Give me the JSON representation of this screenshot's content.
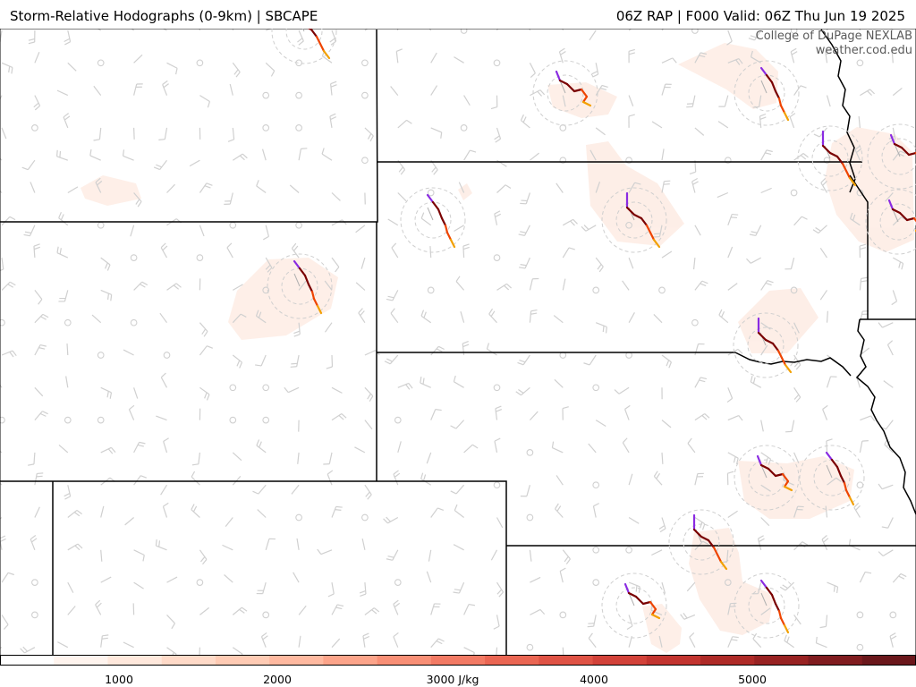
{
  "header": {
    "title_left": "Storm-Relative Hodographs (0-9km) | SBCAPE",
    "title_right": "06Z RAP | F000 Valid: 06Z Thu Jun 19 2025"
  },
  "credit": {
    "line1": "College of DuPage NEXLAB",
    "line2": "weather.cod.edu"
  },
  "colors": {
    "border": "#000000",
    "barb": "#cfcfcf",
    "cape_shade": "#fde9e0",
    "hodo_low": "#8a2be2",
    "hodo_mid": "#7a0000",
    "hodo_high1": "#ee4400",
    "hodo_high2": "#f2a000"
  },
  "colorbar": {
    "unit_label": "3000 J/kg",
    "ticks": [
      "1000",
      "2000",
      "3000 J/kg",
      "4000",
      "5000"
    ],
    "tick_values": [
      1000,
      2000,
      3000,
      4000,
      5000
    ],
    "range": [
      0,
      6000
    ],
    "colors": [
      "#ffffff",
      "#fff4ee",
      "#ffe8dc",
      "#ffdac8",
      "#ffcbb4",
      "#ffb9a0",
      "#fca48a",
      "#f88f76",
      "#f27a64",
      "#ea6653",
      "#df5345",
      "#d24239",
      "#c2342f",
      "#ae2a27",
      "#982222",
      "#801c1f",
      "#6a171b"
    ]
  },
  "hodographs": [
    {
      "lon": 340,
      "lat": 35
    },
    {
      "lon": 632,
      "lat": 104
    },
    {
      "lon": 857,
      "lat": 104
    },
    {
      "lon": 928,
      "lat": 177
    },
    {
      "lon": 1006,
      "lat": 175
    },
    {
      "lon": 484,
      "lat": 246
    },
    {
      "lon": 709,
      "lat": 246
    },
    {
      "lon": 1004,
      "lat": 248
    },
    {
      "lon": 335,
      "lat": 320
    },
    {
      "lon": 856,
      "lat": 386
    },
    {
      "lon": 857,
      "lat": 534
    },
    {
      "lon": 930,
      "lat": 534
    },
    {
      "lon": 784,
      "lat": 606
    },
    {
      "lon": 709,
      "lat": 677
    },
    {
      "lon": 857,
      "lat": 677
    }
  ]
}
